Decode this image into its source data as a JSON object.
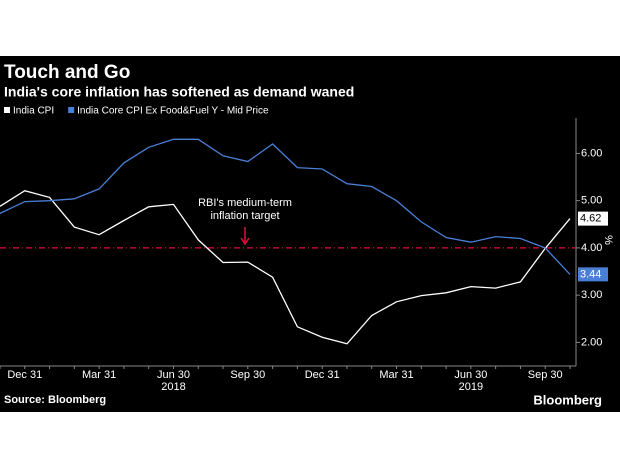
{
  "chart_data": {
    "type": "line",
    "title": "Touch and Go",
    "subtitle": "India's core inflation has softened as demand waned",
    "source": "Source: Bloomberg",
    "brand": "Bloomberg",
    "y_label": "%",
    "annotation": [
      "RBI's medium-term",
      "inflation target"
    ],
    "reference_line": 4,
    "reference_color": "#e0103a",
    "categories": [
      null,
      "Dec 31",
      null,
      null,
      "Mar 31",
      null,
      null,
      "Jun 30",
      null,
      null,
      "Sep 30",
      null,
      null,
      "Dec 31",
      null,
      null,
      "Mar 31",
      null,
      null,
      "Jun 30",
      null,
      null,
      "Sep 30",
      null
    ],
    "year_labels": [
      null,
      null,
      null,
      null,
      null,
      null,
      null,
      "2018",
      null,
      null,
      null,
      null,
      null,
      null,
      null,
      null,
      null,
      null,
      null,
      "2019",
      null,
      null,
      null,
      null
    ],
    "series": [
      {
        "name": "India CPI",
        "color": "#ffffff",
        "values": [
          4.88,
          5.21,
          5.07,
          4.44,
          4.28,
          4.58,
          4.87,
          4.92,
          4.17,
          3.69,
          3.7,
          3.38,
          2.33,
          2.11,
          1.97,
          2.57,
          2.86,
          2.99,
          3.05,
          3.18,
          3.15,
          3.28,
          3.99,
          4.62
        ]
      },
      {
        "name": "India Core CPI Ex Food&Fuel Y - Mid Price",
        "color": "#4a7fd6",
        "values": [
          4.73,
          4.98,
          5.0,
          5.04,
          5.25,
          5.8,
          6.13,
          6.3,
          6.3,
          5.95,
          5.83,
          6.2,
          5.7,
          5.67,
          5.36,
          5.3,
          5.0,
          4.55,
          4.22,
          4.12,
          4.24,
          4.2,
          4.0,
          3.44
        ]
      }
    ],
    "ylim": [
      1.5,
      6.75
    ],
    "yticks": [
      {
        "value": 2,
        "label": "2.00"
      },
      {
        "value": 3,
        "label": "3.00"
      },
      {
        "value": 4,
        "label": "4.00"
      },
      {
        "value": 5,
        "label": "5.00"
      },
      {
        "value": 6,
        "label": "6.00"
      }
    ]
  }
}
